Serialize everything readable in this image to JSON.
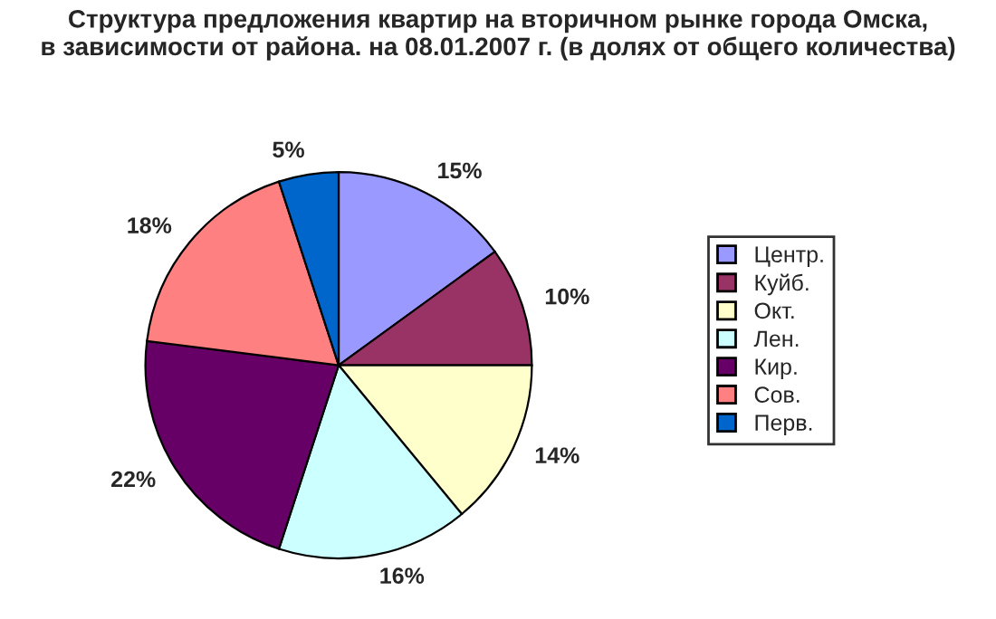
{
  "chart_data": {
    "type": "pie",
    "title": "Структура предложения квартир на вторичном рынке города Омска,\nв зависимости от района. на 08.01.2007 г. (в долях от общего количества)",
    "categories": [
      "Центр.",
      "Куйб.",
      "Окт.",
      "Лен.",
      "Кир.",
      "Сов.",
      "Перв."
    ],
    "values": [
      15,
      10,
      14,
      16,
      22,
      18,
      5
    ],
    "value_labels": [
      "15%",
      "10%",
      "14%",
      "16%",
      "22%",
      "18%",
      "5%"
    ],
    "colors": [
      "#9999ff",
      "#993366",
      "#ffffcc",
      "#ccffff",
      "#660066",
      "#ff8080",
      "#0066cc"
    ],
    "legend": "right"
  }
}
